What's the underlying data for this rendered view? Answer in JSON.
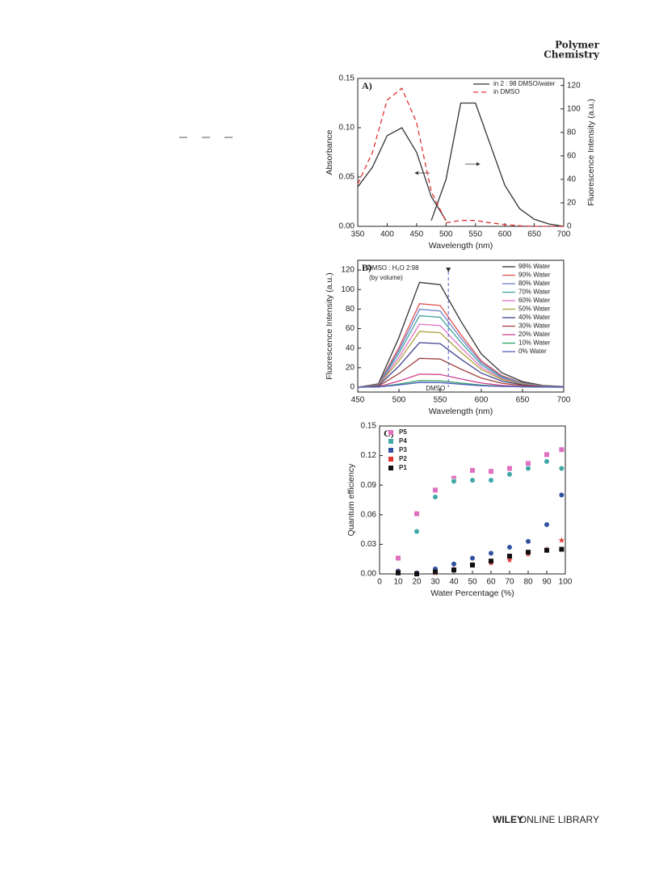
{
  "header": {
    "title_lines": [
      "Polymer",
      "Chemistry"
    ]
  },
  "footer": {
    "brand": "WILEY",
    "text": "ONLINE LIBRARY"
  },
  "chart_data": [
    {
      "type": "line",
      "panel_label": "A)",
      "xlabel": "Wavelength (nm)",
      "ylabel": "Absorbance",
      "y2label": "Fluorescence Intensity (a.u.)",
      "x": [
        350,
        375,
        400,
        425,
        450,
        475,
        500,
        525,
        550,
        575,
        600,
        625,
        650,
        675,
        700
      ],
      "xlim": [
        350,
        700
      ],
      "xticks": [
        350,
        400,
        450,
        500,
        550,
        600,
        650,
        700
      ],
      "ylim": [
        0,
        0.15
      ],
      "yticks": [
        {
          "value": 0,
          "label": "0.00"
        },
        {
          "value": 0.05,
          "label": "0.05"
        },
        {
          "value": 0.1,
          "label": "0.10"
        },
        {
          "value": 0.15,
          "label": "0.15"
        }
      ],
      "y2lim": [
        0,
        126
      ],
      "y2ticks": [
        0,
        20,
        40,
        60,
        80,
        100,
        120
      ],
      "legend": "upper right",
      "series": [
        {
          "name": "in 2 : 98 DMSO/water",
          "color": "#333333",
          "dashed": false,
          "values": [
            0.04,
            0.06,
            0.092,
            0.1,
            0.075,
            0.03,
            0.006,
            null,
            null,
            null,
            null,
            null,
            null,
            null,
            null
          ],
          "y2_values": [
            null,
            null,
            null,
            null,
            null,
            5,
            40,
            105,
            105,
            70,
            35,
            15,
            6,
            2,
            0
          ]
        },
        {
          "name": "in DMSO",
          "color": "#e03030",
          "dashed": true,
          "values": [
            0.043,
            0.075,
            0.128,
            0.14,
            0.105,
            0.035,
            0.005,
            null,
            null,
            null,
            null,
            null,
            null,
            null,
            null
          ],
          "y2_values": [
            null,
            null,
            null,
            null,
            null,
            null,
            3,
            5,
            5,
            3,
            1.5,
            0.5,
            0,
            0,
            0
          ]
        }
      ]
    },
    {
      "type": "line",
      "panel_label": "B)",
      "xlabel": "Wavelength (nm)",
      "ylabel": "Fluorescence Intensity (a.u.)",
      "annotation": "DMSO : H₂O  2:98",
      "annotation_note": "(by volume)",
      "marker_label": "DMSO",
      "marker_x": 560,
      "x": [
        450,
        475,
        500,
        525,
        550,
        575,
        600,
        625,
        650,
        675,
        700
      ],
      "xlim": [
        450,
        700
      ],
      "xticks": [
        450,
        500,
        550,
        600,
        650,
        700
      ],
      "ylim": [
        -5,
        130
      ],
      "yticks": [
        0,
        20,
        40,
        60,
        80,
        100,
        120
      ],
      "legend": "right",
      "series": [
        {
          "name": "98% Water",
          "color": "#333333",
          "values": [
            0,
            3.4,
            50.9,
            107.4,
            105.1,
            67.8,
            33.9,
            14.7,
            5.7,
            1.7,
            0.6
          ]
        },
        {
          "name": "90% Water",
          "color": "#e05050",
          "values": [
            0,
            2.7,
            40.5,
            85.5,
            83.7,
            54,
            27,
            11.7,
            4.5,
            1.4,
            0.5
          ]
        },
        {
          "name": "80% Water",
          "color": "#6a80c8",
          "values": [
            0,
            2.5,
            37.8,
            79.8,
            78.1,
            50.4,
            25.2,
            10.9,
            4.2,
            1.3,
            0.4
          ]
        },
        {
          "name": "70% Water",
          "color": "#40a0a0",
          "values": [
            0,
            2.3,
            34.7,
            73.2,
            71.6,
            46.2,
            23.1,
            10,
            3.9,
            1.2,
            0.4
          ]
        },
        {
          "name": "60% Water",
          "color": "#e070c0",
          "values": [
            0,
            2,
            30.6,
            64.6,
            63.2,
            40.8,
            20.4,
            8.8,
            3.4,
            1,
            0.3
          ]
        },
        {
          "name": "50% Water",
          "color": "#b0a040",
          "values": [
            0,
            1.8,
            27,
            57,
            55.8,
            36,
            18,
            7.8,
            3,
            0.9,
            0.3
          ]
        },
        {
          "name": "40% Water",
          "color": "#404090",
          "values": [
            0,
            1.4,
            21.6,
            45.6,
            44.6,
            28.8,
            14.4,
            6.2,
            2.4,
            0.7,
            0.2
          ]
        },
        {
          "name": "30% Water",
          "color": "#a04040",
          "values": [
            0,
            0.9,
            14,
            29.5,
            28.8,
            18.6,
            9.3,
            4,
            1.6,
            0.5,
            0.2
          ]
        },
        {
          "name": "20% Water",
          "color": "#d04090",
          "values": [
            0,
            0.4,
            6.3,
            13.3,
            13,
            8.4,
            4.2,
            1.8,
            0.7,
            0.2,
            0.1
          ]
        },
        {
          "name": "10% Water",
          "color": "#30a060",
          "values": [
            0,
            0.2,
            3.2,
            6.7,
            6.5,
            4.2,
            2.1,
            0.9,
            0.4,
            0.1,
            0
          ]
        },
        {
          "name": "0% Water",
          "color": "#5060c0",
          "values": [
            0,
            0.2,
            2.3,
            4.8,
            4.7,
            3,
            1.5,
            0.7,
            0.3,
            0.1,
            0
          ]
        }
      ]
    },
    {
      "type": "scatter",
      "panel_label": "C)",
      "xlabel": "Water Percentage (%)",
      "ylabel": "Quantum efficiency",
      "x": [
        10,
        20,
        30,
        40,
        50,
        60,
        70,
        80,
        90,
        98
      ],
      "xlim": [
        0,
        100
      ],
      "xticks": [
        0,
        10,
        20,
        30,
        40,
        50,
        60,
        70,
        80,
        90,
        100
      ],
      "ylim": [
        0,
        0.15
      ],
      "yticks": [
        {
          "value": 0,
          "label": "0.00"
        },
        {
          "value": 0.03,
          "label": "0.03"
        },
        {
          "value": 0.06,
          "label": "0.06"
        },
        {
          "value": 0.09,
          "label": "0.09"
        },
        {
          "value": 0.12,
          "label": "0.12"
        },
        {
          "value": 0.15,
          "label": "0.15"
        }
      ],
      "legend": "upper left",
      "series": [
        {
          "name": "P5",
          "color": "#e070c0",
          "marker": "square",
          "values": [
            0.016,
            0.061,
            0.085,
            0.097,
            0.105,
            0.104,
            0.107,
            0.112,
            0.121,
            0.126
          ]
        },
        {
          "name": "P4",
          "color": "#40a8a8",
          "marker": "circle",
          "values": [
            0.003,
            0.043,
            0.078,
            0.094,
            0.095,
            0.095,
            0.101,
            0.107,
            0.114,
            0.107
          ]
        },
        {
          "name": "P3",
          "color": "#3050a0",
          "marker": "circle",
          "values": [
            0.003,
            0.001,
            0.005,
            0.01,
            0.016,
            0.021,
            0.027,
            0.033,
            0.05,
            0.08
          ]
        },
        {
          "name": "P2",
          "color": "#e03030",
          "marker": "star",
          "values": [
            0.002,
            0.0,
            0.001,
            0.005,
            0.009,
            0.011,
            0.014,
            0.02,
            0.025,
            0.034
          ]
        },
        {
          "name": "P1",
          "color": "#111111",
          "marker": "square",
          "values": [
            0.001,
            0.0,
            0.002,
            0.004,
            0.009,
            0.013,
            0.018,
            0.022,
            0.024,
            0.025
          ]
        }
      ]
    }
  ]
}
